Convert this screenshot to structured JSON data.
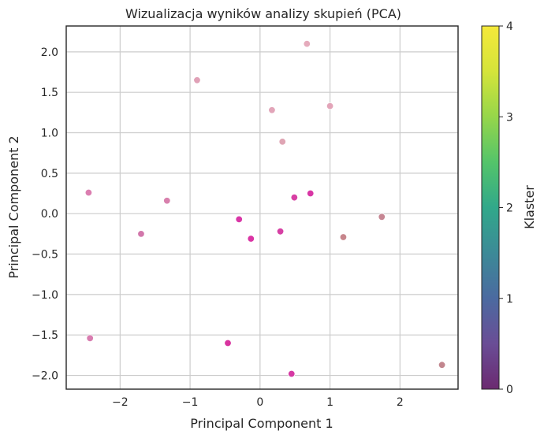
{
  "chart_data": {
    "type": "scatter",
    "title": "Wizualizacja wyników analizy skupień (PCA)",
    "xlabel": "Principal Component 1",
    "ylabel": "Principal Component 2",
    "xlim": [
      -2.77,
      2.83
    ],
    "ylim": [
      -2.17,
      2.32
    ],
    "xticks": [
      -2,
      -1,
      0,
      1,
      2
    ],
    "yticks": [
      -2.0,
      -1.5,
      -1.0,
      -0.5,
      0.0,
      0.5,
      1.0,
      1.5,
      2.0
    ],
    "grid": true,
    "points": [
      {
        "x": 0.67,
        "y": 2.1,
        "color": "#e4a6b8"
      },
      {
        "x": -0.9,
        "y": 1.65,
        "color": "#de9cb3"
      },
      {
        "x": 0.17,
        "y": 1.28,
        "color": "#e0a0b5"
      },
      {
        "x": 1.0,
        "y": 1.33,
        "color": "#e1a0b5"
      },
      {
        "x": 0.32,
        "y": 0.89,
        "color": "#dda0b0"
      },
      {
        "x": -2.45,
        "y": 0.26,
        "color": "#d977ac"
      },
      {
        "x": -1.33,
        "y": 0.16,
        "color": "#d679a9"
      },
      {
        "x": 0.72,
        "y": 0.25,
        "color": "#d62ba0"
      },
      {
        "x": 0.49,
        "y": 0.2,
        "color": "#d6369f"
      },
      {
        "x": -0.3,
        "y": -0.07,
        "color": "#d72ca2"
      },
      {
        "x": -1.7,
        "y": -0.25,
        "color": "#d070a6"
      },
      {
        "x": 0.29,
        "y": -0.22,
        "color": "#d4369f"
      },
      {
        "x": -0.13,
        "y": -0.31,
        "color": "#d8299f"
      },
      {
        "x": 1.19,
        "y": -0.29,
        "color": "#c48086"
      },
      {
        "x": 1.74,
        "y": -0.04,
        "color": "#c3808d"
      },
      {
        "x": -2.43,
        "y": -1.54,
        "color": "#d676ac"
      },
      {
        "x": -0.46,
        "y": -1.6,
        "color": "#d6289a"
      },
      {
        "x": 0.45,
        "y": -1.98,
        "color": "#d42f9f"
      },
      {
        "x": 2.6,
        "y": -1.87,
        "color": "#bf7f88"
      }
    ],
    "colorbar": {
      "label": "Klaster",
      "min": 0,
      "max": 4,
      "ticks": [
        "0",
        "1",
        "2",
        "3",
        "4"
      ],
      "colormap": "viridis",
      "stops": [
        "#6b2a70",
        "#6a4d96",
        "#4b6aa0",
        "#3c8a97",
        "#31a88a",
        "#54c46a",
        "#96d64a",
        "#d5e43a",
        "#f5e93a"
      ]
    }
  }
}
